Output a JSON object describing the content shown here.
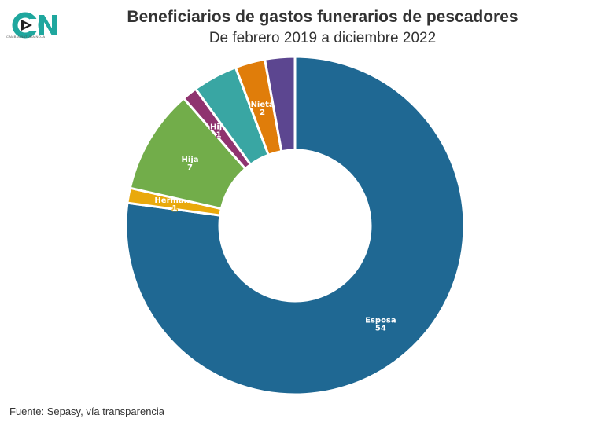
{
  "header": {
    "title": "Beneficiarios de gastos funerarios de pescadores",
    "subtitle": "De febrero 2019 a diciembre 2022"
  },
  "logo": {
    "text": "CN",
    "tagline": "CAMBIA NATURA NOJA"
  },
  "footer": {
    "source": "Fuente: Sepasy, vía transparencia"
  },
  "chart_data": {
    "type": "pie",
    "donut": true,
    "title": "Beneficiarios de gastos funerarios de pescadores",
    "subtitle": "De febrero 2019 a diciembre 2022",
    "slices": [
      {
        "label": "Esposa",
        "value": 54,
        "color": "#1f6893",
        "show_label": true
      },
      {
        "label": "Hermana",
        "value": 1,
        "color": "#e9a90c",
        "show_label": true
      },
      {
        "label": "Hija",
        "value": 7,
        "color": "#72ad4a",
        "show_label": true
      },
      {
        "label": "Hijo",
        "value": 1,
        "color": "#8f336f",
        "show_label": true
      },
      {
        "label": "",
        "value": 3,
        "color": "#39a6a3",
        "show_label": false
      },
      {
        "label": "Nieta",
        "value": 2,
        "color": "#e07d0a",
        "show_label": true
      },
      {
        "label": "",
        "value": 2,
        "color": "#5c4690",
        "show_label": false
      }
    ]
  }
}
